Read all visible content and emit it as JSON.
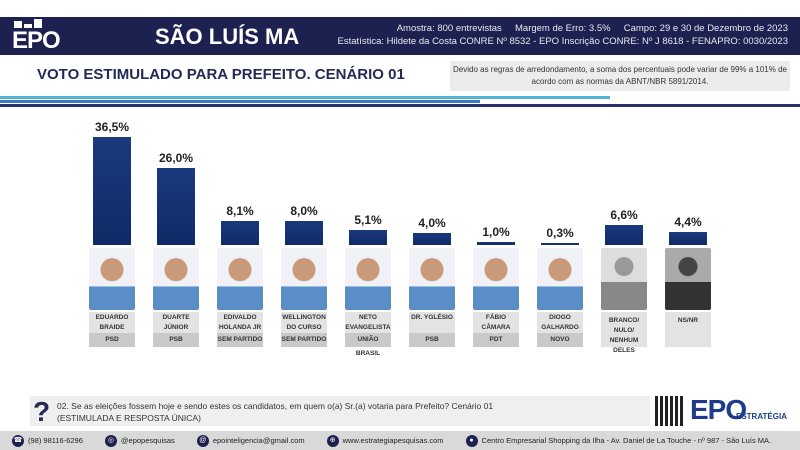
{
  "header": {
    "logo": "EPO",
    "city": "SÃO LUÍS MA",
    "meta_line1": "Amostra: 800 entrevistas     Margem de Erro: 3.5%     Campo: 29 e 30 de Dezembro de 2023",
    "meta_line2": "Estatística: Hildete da Costa CONRE Nº 8532  - EPO Inscrição CONRE: Nº J 8618 - FENAPRO: 0030/2023"
  },
  "title": "VOTO ESTIMULADO PARA PREFEITO. CENÁRIO 01",
  "note": "Devido as regras de arredondamento, a soma dos percentuais pode variar de 99% a 101% de acordo com as normas da ABNT/NBR 5891/2014.",
  "colors": {
    "navy": "#1c2150",
    "bar": "#1a3a7e",
    "light_blue": "#4fb3d9"
  },
  "chart_data": {
    "type": "bar",
    "ylim": [
      0,
      36.5
    ],
    "categories": [
      "EDUARDO BRAIDE",
      "DUARTE JÚNIOR",
      "EDIVALDO HOLANDA JR",
      "WELLINGTON DO CURSO",
      "NETO EVANGELISTA",
      "DR. YGLÉSIO",
      "FÁBIO CÂMARA",
      "DIOGO GALHARDO",
      "BRANCO/ NULO/ NENHUM DELES",
      "NS/NR"
    ],
    "values": [
      36.5,
      26.0,
      8.1,
      8.0,
      5.1,
      4.0,
      1.0,
      0.3,
      6.6,
      4.4
    ],
    "labels": [
      "36,5%",
      "26,0%",
      "8,1%",
      "8,0%",
      "5,1%",
      "4,0%",
      "1,0%",
      "0,3%",
      "6,6%",
      "4,4%"
    ],
    "parties": [
      "PSD",
      "PSB",
      "SEM PARTIDO",
      "SEM PARTIDO",
      "UNIÃO BRASIL",
      "PSB",
      "PDT",
      "NOVO",
      "",
      ""
    ]
  },
  "question": {
    "line1": "02. Se as eleições fossem hoje e sendo estes os candidatos, em quem o(a) Sr.(a) votaria para Prefeito? Cenário 01",
    "line2": "(ESTIMULADA E RESPOSTA ÚNICA)",
    "logo": "EPO",
    "logo_sub": "ESTRATÉGIA"
  },
  "footer": {
    "phone": "(98) 98116-6296",
    "instagram": "@epopesquisas",
    "email": "epointeligencia@gmail.com",
    "site": "www.estrategiapesquisas.com",
    "address": "Centro Empresarial Shopping da Ilha - Av. Daniel de La Touche - nº 987 - São Luís MA."
  }
}
